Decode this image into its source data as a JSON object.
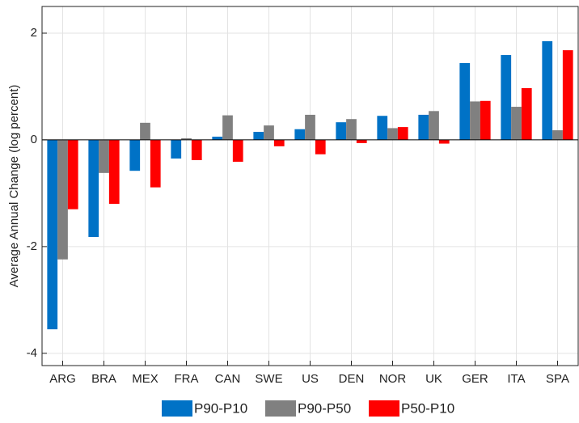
{
  "chart_data": {
    "type": "bar",
    "y_label": "Average Annual Change (log percent)",
    "categories": [
      "ARG",
      "BRA",
      "MEX",
      "FRA",
      "CAN",
      "SWE",
      "US",
      "DEN",
      "NOR",
      "UK",
      "GER",
      "ITA",
      "SPA"
    ],
    "series": [
      {
        "name": "P90-P10",
        "color": "#0072c6",
        "values": [
          -3.55,
          -1.82,
          -0.58,
          -0.35,
          0.06,
          0.15,
          0.2,
          0.33,
          0.45,
          0.47,
          1.44,
          1.59,
          1.85
        ]
      },
      {
        "name": "P90-P50",
        "color": "#808080",
        "values": [
          -2.24,
          -0.62,
          0.32,
          0.03,
          0.46,
          0.27,
          0.47,
          0.39,
          0.22,
          0.54,
          0.72,
          0.62,
          0.18
        ]
      },
      {
        "name": "P50-P10",
        "color": "#ff0000",
        "values": [
          -1.3,
          -1.2,
          -0.89,
          -0.38,
          -0.41,
          -0.12,
          -0.27,
          -0.06,
          0.24,
          -0.07,
          0.73,
          0.97,
          1.68
        ]
      }
    ],
    "ylim": [
      -4.23,
      2.5
    ],
    "yticks": [
      -4,
      -2,
      0,
      2
    ],
    "grid": true,
    "legend": "bottom"
  }
}
